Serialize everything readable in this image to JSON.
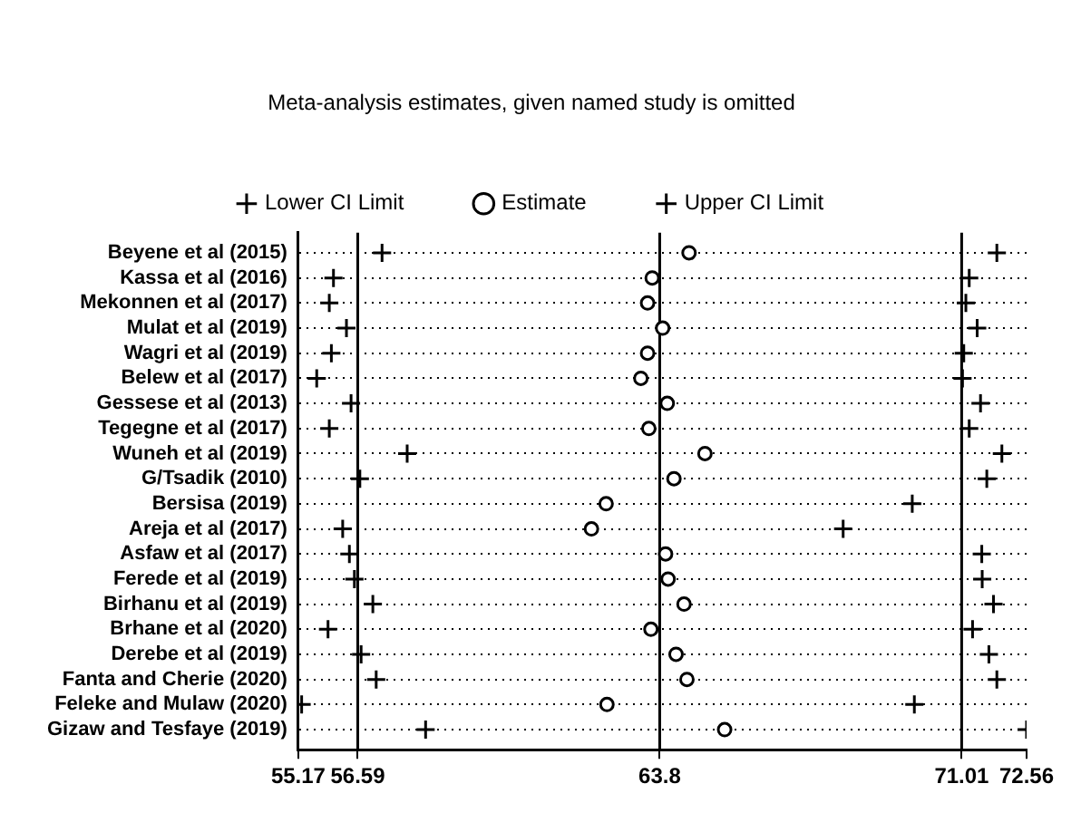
{
  "chart_data": {
    "type": "scatter",
    "orientation": "horizontal",
    "title": "Meta-analysis estimates, given named study is omitted",
    "categories": [
      "Beyene et al (2015)",
      "Kassa et al (2016)",
      "Mekonnen et al (2017)",
      "Mulat et al (2019)",
      "Wagri et al (2019)",
      "Belew et al (2017)",
      "Gessese et al (2013)",
      "Tegegne et al (2017)",
      "Wuneh et al (2019)",
      "G/Tsadik (2010)",
      "Bersisa (2019)",
      "Areja et al (2017)",
      "Asfaw et al (2017)",
      "Ferede et al (2019)",
      "Birhanu et al (2019)",
      "Brhane et al (2020)",
      "Derebe et al (2019)",
      "Fanta and Cherie (2020)",
      "Feleke and Mulaw (2020)",
      "Gizaw and Tesfaye (2019)"
    ],
    "series": [
      {
        "name": "Lower CI Limit",
        "color": "#000000",
        "marker": "cross",
        "values": [
          57.17,
          56.01,
          55.91,
          56.32,
          55.96,
          55.61,
          56.43,
          55.91,
          57.77,
          56.64,
          null,
          56.23,
          56.39,
          56.51,
          56.95,
          55.88,
          56.67,
          57.03,
          55.25,
          58.21
        ]
      },
      {
        "name": "Estimate",
        "color": "#000000",
        "marker": "circle",
        "values": [
          64.5,
          63.62,
          63.51,
          63.87,
          63.51,
          63.35,
          63.98,
          63.54,
          64.88,
          64.14,
          62.52,
          62.17,
          63.94,
          64.0,
          64.38,
          63.59,
          64.19,
          64.45,
          62.54,
          65.35
        ]
      },
      {
        "name": "Upper CI Limit",
        "color": "#000000",
        "marker": "cross",
        "values": [
          71.85,
          71.19,
          71.11,
          71.38,
          71.06,
          71.03,
          71.46,
          71.19,
          71.97,
          71.61,
          69.83,
          68.18,
          71.49,
          71.5,
          71.77,
          71.27,
          71.66,
          71.85,
          69.88,
          72.56
        ]
      }
    ],
    "xlim": [
      55.17,
      72.56
    ],
    "xticks": [
      55.17,
      56.59,
      63.8,
      71.01,
      72.56
    ],
    "ref_lines": [
      {
        "axis": "x",
        "value": 56.59
      },
      {
        "axis": "x",
        "value": 63.8
      },
      {
        "axis": "x",
        "value": 71.01
      }
    ],
    "grid": "y",
    "line_style": "dotted",
    "legend": "top"
  }
}
